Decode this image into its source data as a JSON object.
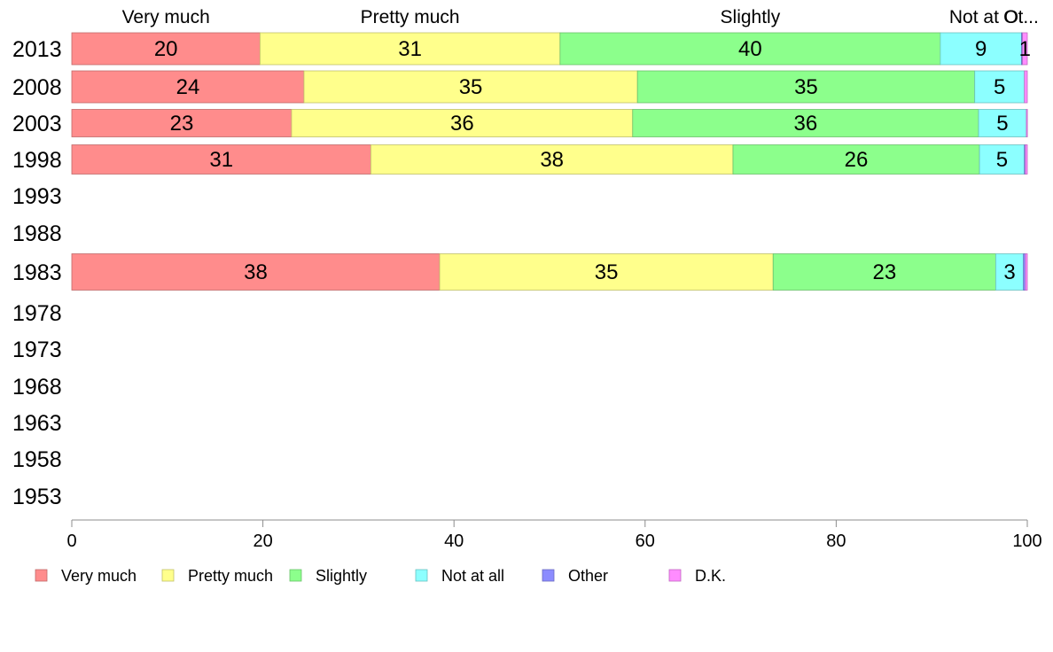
{
  "chart_data": {
    "type": "bar",
    "orientation": "horizontal",
    "stacked": true,
    "categories": [
      "2013",
      "2008",
      "2003",
      "1998",
      "1993",
      "1988",
      "1983",
      "1978",
      "1973",
      "1968",
      "1963",
      "1958",
      "1953"
    ],
    "series": [
      {
        "name": "Very much",
        "color": "#FF8C8C",
        "values": [
          19.7,
          24.3,
          23.0,
          31.3,
          null,
          null,
          38.5,
          null,
          null,
          null,
          null,
          null,
          null
        ],
        "labels": [
          "20",
          "24",
          "23",
          "31",
          "",
          "",
          "38",
          "",
          "",
          "",
          "",
          "",
          ""
        ]
      },
      {
        "name": "Pretty much",
        "color": "#FFFF8C",
        "values": [
          31.4,
          34.9,
          35.7,
          37.9,
          null,
          null,
          34.9,
          null,
          null,
          null,
          null,
          null,
          null
        ],
        "labels": [
          "31",
          "35",
          "36",
          "38",
          "",
          "",
          "35",
          "",
          "",
          "",
          "",
          "",
          ""
        ]
      },
      {
        "name": "Slightly",
        "color": "#8CFF8C",
        "values": [
          39.8,
          35.3,
          36.2,
          25.8,
          null,
          null,
          23.3,
          null,
          null,
          null,
          null,
          null,
          null
        ],
        "labels": [
          "40",
          "35",
          "36",
          "26",
          "",
          "",
          "23",
          "",
          "",
          "",
          "",
          "",
          ""
        ]
      },
      {
        "name": "Not at all",
        "color": "#8CFFFF",
        "values": [
          8.5,
          5.2,
          5.0,
          4.7,
          null,
          null,
          2.9,
          null,
          null,
          null,
          null,
          null,
          null
        ],
        "labels": [
          "9",
          "5",
          "5",
          "5",
          "",
          "",
          "3",
          "",
          "",
          "",
          "",
          "",
          ""
        ]
      },
      {
        "name": "Other",
        "color": "#8C8CFF",
        "values": [
          0.1,
          0.0,
          0.0,
          0.1,
          null,
          null,
          0.2,
          null,
          null,
          null,
          null,
          null,
          null
        ],
        "labels": [
          "",
          "",
          "",
          "",
          "",
          "",
          "",
          "",
          "",
          "",
          "",
          "",
          ""
        ]
      },
      {
        "name": "D.K.",
        "color": "#FF8CFF",
        "values": [
          0.5,
          0.3,
          0.1,
          0.2,
          null,
          null,
          0.2,
          null,
          null,
          null,
          null,
          null,
          null
        ],
        "labels": [
          "1",
          "",
          "",
          "",
          "",
          "",
          "",
          "",
          "",
          "",
          "",
          "",
          ""
        ]
      }
    ],
    "top_labels": [
      "Very much",
      "Pretty much",
      "Slightly",
      "Not at O",
      "Ot..."
    ],
    "xlim": [
      0,
      100
    ],
    "xticks": [
      0,
      20,
      40,
      60,
      80,
      100
    ],
    "xtick_labels": [
      "0",
      "20",
      "40",
      "60",
      "80",
      "100"
    ],
    "grid": false,
    "legend_position": "bottom"
  }
}
